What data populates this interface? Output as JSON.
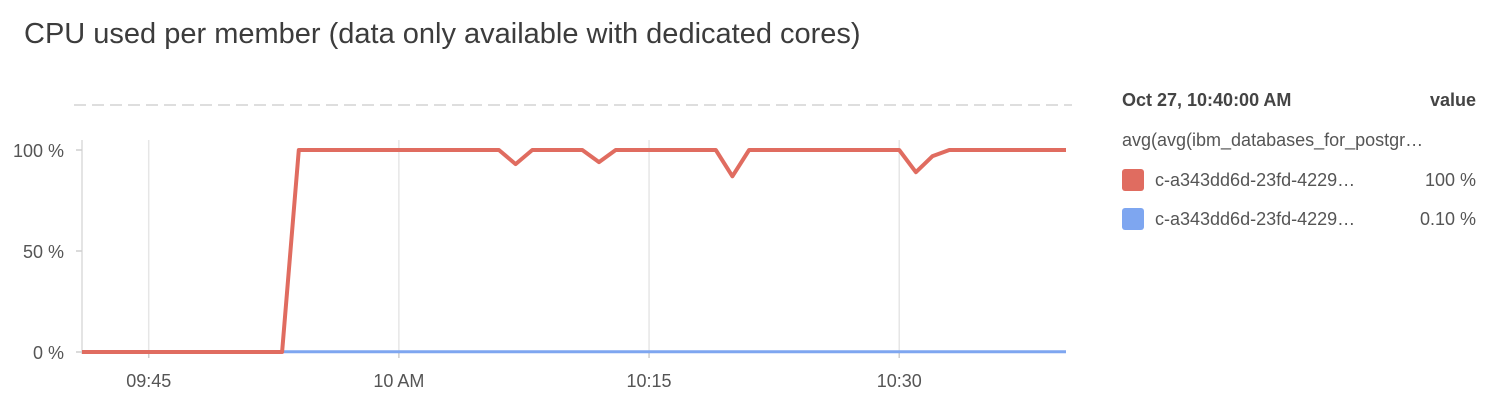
{
  "title": "CPU used per member (data only available with dedicated cores)",
  "legend": {
    "timestamp": "Oct 27, 10:40:00 AM",
    "value_header": "value",
    "query": "avg(avg(ibm_databases_for_postgr…",
    "items": [
      {
        "name": "c-a343dd6d-23fd-4229…",
        "value": "100 %",
        "color": "#e06c60"
      },
      {
        "name": "c-a343dd6d-23fd-4229…",
        "value": "0.10 %",
        "color": "#7ea6f0"
      }
    ]
  },
  "chart_data": {
    "type": "line",
    "xlim": [
      0,
      59
    ],
    "ylim": [
      0,
      100
    ],
    "y_ticks": [
      {
        "value": 0,
        "label": "0 %"
      },
      {
        "value": 50,
        "label": "50 %"
      },
      {
        "value": 100,
        "label": "100 %"
      }
    ],
    "x_ticks": [
      {
        "value": 4,
        "label": "09:45"
      },
      {
        "value": 19,
        "label": "10 AM"
      },
      {
        "value": 34,
        "label": "10:15"
      },
      {
        "value": 49,
        "label": "10:30"
      }
    ],
    "grid": true,
    "legend_position": "right",
    "series": [
      {
        "color": "#e06c60",
        "x": [
          0,
          12,
          13,
          25,
          26,
          27,
          30,
          31,
          32,
          38,
          39,
          40,
          49,
          50,
          51,
          52,
          59
        ],
        "y": [
          0,
          0,
          100,
          100,
          93,
          100,
          100,
          94,
          100,
          100,
          87,
          100,
          100,
          89,
          97,
          100,
          100
        ]
      },
      {
        "color": "#7ea6f0",
        "x": [
          0,
          59
        ],
        "y": [
          0.1,
          0.1
        ]
      }
    ]
  }
}
